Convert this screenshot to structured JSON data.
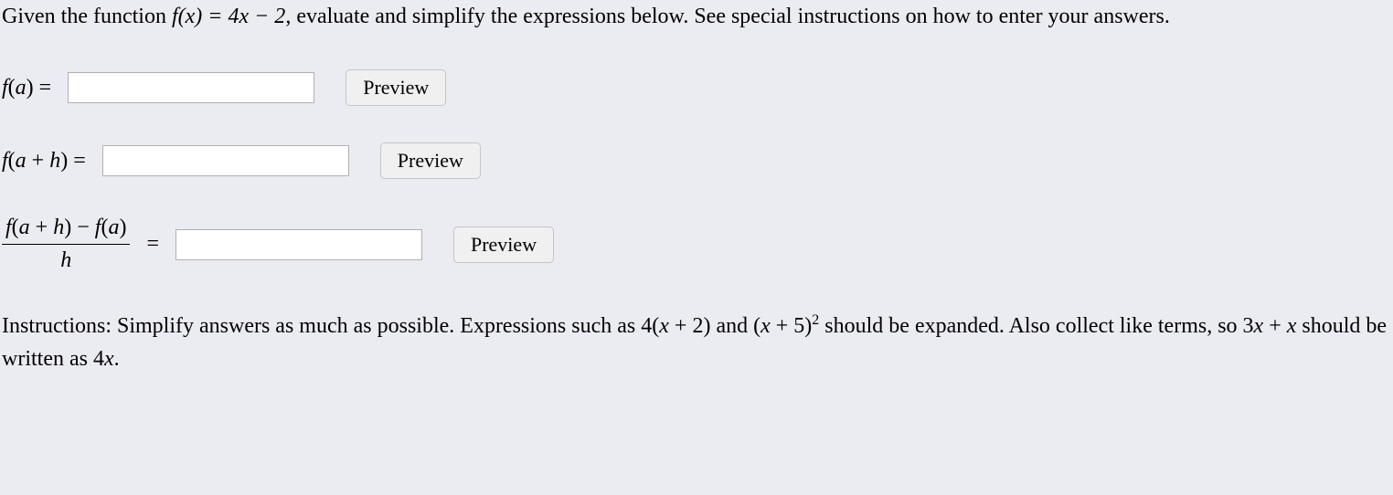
{
  "intro": {
    "prefix": "Given the function ",
    "function_def": "f(x) = 4x − 2",
    "suffix": ", evaluate and simplify the expressions below. See special instructions on how to enter your answers."
  },
  "expressions": {
    "row1": {
      "label_func": "f",
      "label_arg": "(a)",
      "equals": "=",
      "preview_label": "Preview"
    },
    "row2": {
      "label_func": "f",
      "label_arg": "(a + h)",
      "equals": "=",
      "preview_label": "Preview"
    },
    "row3": {
      "numerator": "f(a + h) − f(a)",
      "denominator": "h",
      "equals": "=",
      "preview_label": "Preview"
    }
  },
  "instructions": {
    "prefix": "Instructions: Simplify answers as much as possible. Expressions such as ",
    "expr1": "4(x + 2)",
    "mid1": " and ",
    "expr2_base": "(x + 5)",
    "expr2_exp": "2",
    "mid2": " should be expanded. Also collect like terms, so ",
    "expr3": "3x + x",
    "mid3": " should be written as ",
    "expr4": "4x",
    "end": "."
  },
  "colors": {
    "background": "#ebebf2",
    "input_bg": "#ffffff",
    "input_border": "#b0b0b0",
    "button_bg": "#f0f0f0",
    "button_border": "#c5c5c5",
    "text": "#000000"
  },
  "typography": {
    "body_fontsize": 22,
    "title_fontsize": 24,
    "font_family": "Georgia, Times New Roman, serif"
  }
}
